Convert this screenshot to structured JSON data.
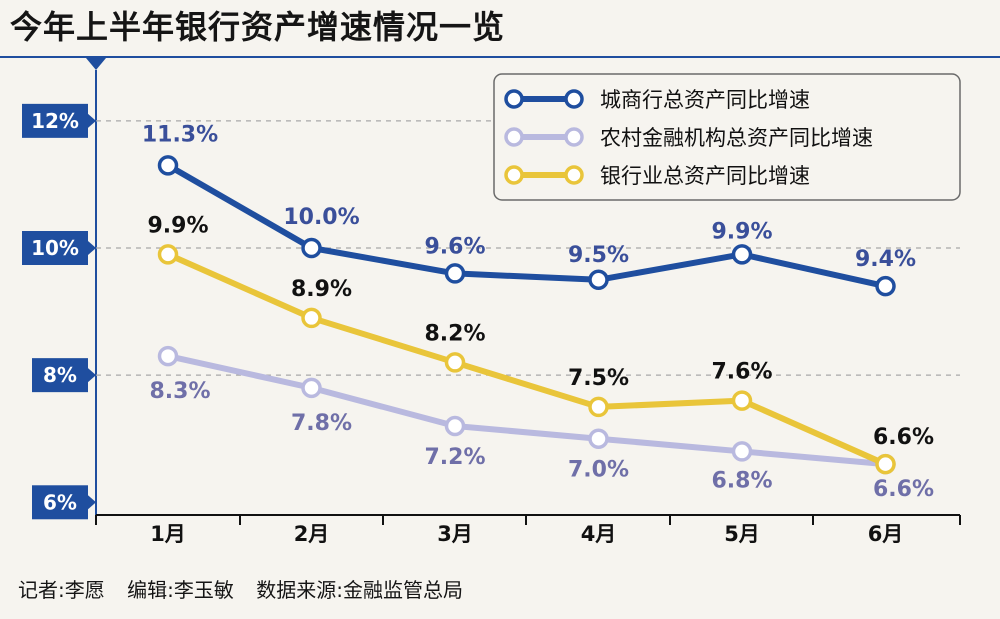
{
  "title": "今年上半年银行资产增速情况一览",
  "footer": {
    "reporter": "记者:李愿",
    "editor": "编辑:李玉敏",
    "source": "数据来源:金融监管总局"
  },
  "colors": {
    "navy": "#1f4e9f",
    "lavender": "#b9b9df",
    "gold": "#e9c53a",
    "lavender_label": "#6f6fa8"
  },
  "chart_data": {
    "type": "line",
    "x": [
      "1月",
      "2月",
      "3月",
      "4月",
      "5月",
      "6月"
    ],
    "ylim": [
      5.8,
      12.8
    ],
    "yticks": [
      {
        "value": 12,
        "label": "12%"
      },
      {
        "value": 10,
        "label": "10%"
      },
      {
        "value": 8,
        "label": "8%"
      },
      {
        "value": 6,
        "label": "6%"
      }
    ],
    "grid": "dashed horizontal at 12, 10, 8",
    "legend_position": "top-right",
    "series": [
      {
        "name": "城商行总资产同比增速",
        "color": "#1f4e9f",
        "label_color": "#3a4f9a",
        "values": [
          11.3,
          10.0,
          9.6,
          9.5,
          9.9,
          9.4
        ],
        "labels": [
          "11.3%",
          "10.0%",
          "9.6%",
          "9.5%",
          "9.9%",
          "9.4%"
        ]
      },
      {
        "name": "农村金融机构总资产同比增速",
        "color": "#b9b9df",
        "label_color": "#6f6fa8",
        "values": [
          8.3,
          7.8,
          7.2,
          7.0,
          6.8,
          6.6
        ],
        "labels": [
          "8.3%",
          "7.8%",
          "7.2%",
          "7.0%",
          "6.8%",
          "6.6%"
        ]
      },
      {
        "name": "银行业总资产同比增速",
        "color": "#e9c53a",
        "label_color": "#111111",
        "values": [
          9.9,
          8.9,
          8.2,
          7.5,
          7.6,
          6.6
        ],
        "labels": [
          "9.9%",
          "8.9%",
          "8.2%",
          "7.5%",
          "7.6%",
          "6.6%"
        ]
      }
    ]
  }
}
